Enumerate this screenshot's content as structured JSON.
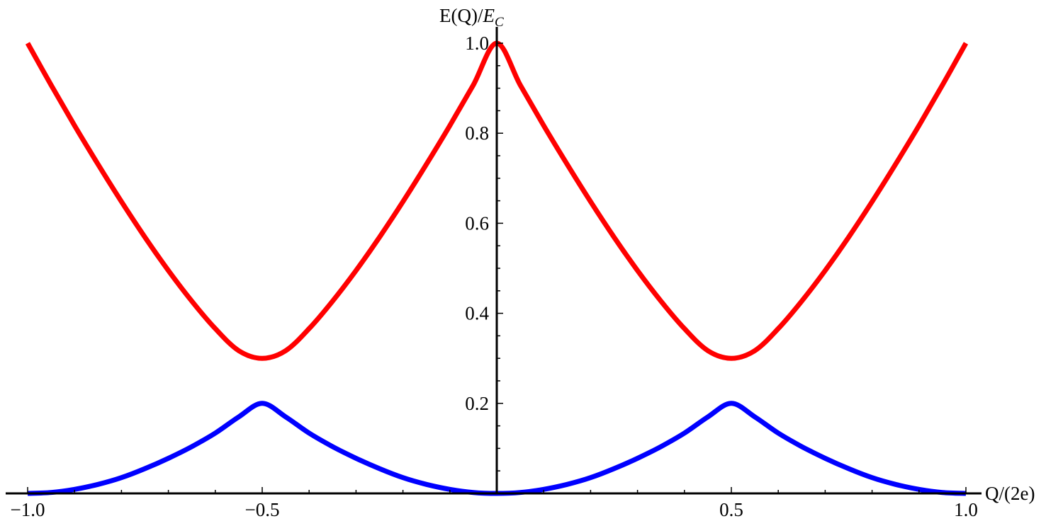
{
  "chart_data": {
    "type": "line",
    "title": "",
    "xlabel": "Q/(2e)",
    "ylabel_main": "E(Q)/",
    "ylabel_italic": "E",
    "ylabel_sub": "C",
    "xlim": [
      -1.0,
      1.0
    ],
    "ylim": [
      0.0,
      1.0
    ],
    "x_ticks": [
      {
        "value": -1.0,
        "label": "−1.0"
      },
      {
        "value": -0.5,
        "label": "−0.5"
      },
      {
        "value": 0.5,
        "label": "0.5"
      },
      {
        "value": 1.0,
        "label": "1.0"
      }
    ],
    "y_ticks": [
      {
        "value": 0.2,
        "label": "0.2"
      },
      {
        "value": 0.4,
        "label": "0.4"
      },
      {
        "value": 0.6,
        "label": "0.6"
      },
      {
        "value": 0.8,
        "label": "0.8"
      },
      {
        "value": 1.0,
        "label": "1.0"
      }
    ],
    "grid": false,
    "series": [
      {
        "color": "#ff0000",
        "x": [
          -1.0,
          -0.95,
          -0.9,
          -0.85,
          -0.8,
          -0.75,
          -0.7,
          -0.65,
          -0.6,
          -0.55,
          -0.5,
          -0.45,
          -0.4,
          -0.35,
          -0.3,
          -0.25,
          -0.2,
          -0.15,
          -0.1,
          -0.05,
          0.0,
          0.05,
          0.1,
          0.15,
          0.2,
          0.25,
          0.3,
          0.35,
          0.4,
          0.45,
          0.5,
          0.55,
          0.6,
          0.65,
          0.7,
          0.75,
          0.8,
          0.85,
          0.9,
          0.95,
          1.0
        ],
        "y": [
          1.0,
          0.907,
          0.817,
          0.731,
          0.648,
          0.569,
          0.495,
          0.427,
          0.366,
          0.317,
          0.3,
          0.317,
          0.366,
          0.427,
          0.495,
          0.569,
          0.648,
          0.731,
          0.817,
          0.907,
          1.0,
          0.907,
          0.817,
          0.731,
          0.648,
          0.569,
          0.495,
          0.427,
          0.366,
          0.317,
          0.3,
          0.317,
          0.366,
          0.427,
          0.495,
          0.569,
          0.648,
          0.731,
          0.817,
          0.907,
          1.0
        ]
      },
      {
        "color": "#0000ff",
        "x": [
          -1.0,
          -0.95,
          -0.9,
          -0.85,
          -0.8,
          -0.75,
          -0.7,
          -0.65,
          -0.6,
          -0.55,
          -0.5,
          -0.45,
          -0.4,
          -0.35,
          -0.3,
          -0.25,
          -0.2,
          -0.15,
          -0.1,
          -0.05,
          0.0,
          0.05,
          0.1,
          0.15,
          0.2,
          0.25,
          0.3,
          0.35,
          0.4,
          0.45,
          0.5,
          0.55,
          0.6,
          0.65,
          0.7,
          0.75,
          0.8,
          0.85,
          0.9,
          0.95,
          1.0
        ],
        "y": [
          0.0,
          0.002,
          0.009,
          0.02,
          0.035,
          0.055,
          0.078,
          0.104,
          0.134,
          0.17,
          0.2,
          0.17,
          0.134,
          0.104,
          0.078,
          0.055,
          0.035,
          0.02,
          0.009,
          0.002,
          0.0,
          0.002,
          0.009,
          0.02,
          0.035,
          0.055,
          0.078,
          0.104,
          0.134,
          0.17,
          0.2,
          0.17,
          0.134,
          0.104,
          0.078,
          0.055,
          0.035,
          0.02,
          0.009,
          0.002,
          0.0
        ]
      }
    ]
  }
}
